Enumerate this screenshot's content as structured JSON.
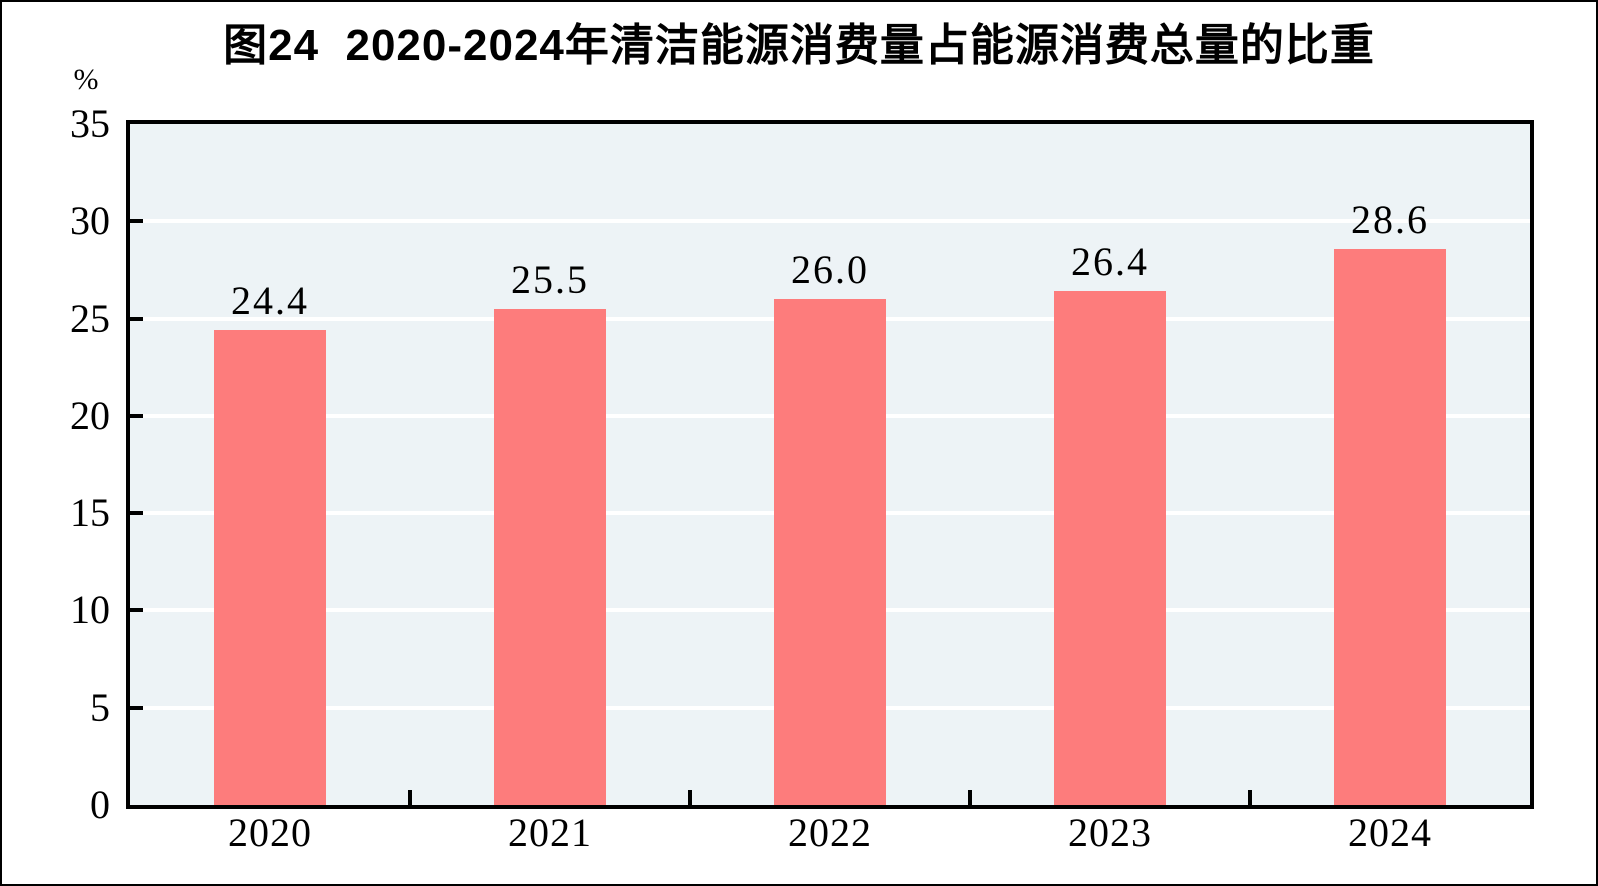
{
  "chart_data": {
    "type": "bar",
    "title": "图24  2020-2024年清洁能源消费量占能源消费总量的比重",
    "categories": [
      "2020",
      "2021",
      "2022",
      "2023",
      "2024"
    ],
    "values": [
      24.4,
      25.5,
      26.0,
      26.4,
      28.6
    ],
    "value_labels": [
      "24.4",
      "25.5",
      "26.0",
      "26.4",
      "28.6"
    ],
    "xlabel": "",
    "ylabel": "%",
    "ylim": [
      0,
      35
    ],
    "yticks": [
      0,
      5,
      10,
      15,
      20,
      25,
      30,
      35
    ],
    "grid": true,
    "legend": "none",
    "bar_color": "#FD7C7C",
    "plot_background": "#EDF3F6",
    "gridline_color": "#FFFFFF",
    "axis_color": "#000000",
    "text_color": "#000000"
  }
}
